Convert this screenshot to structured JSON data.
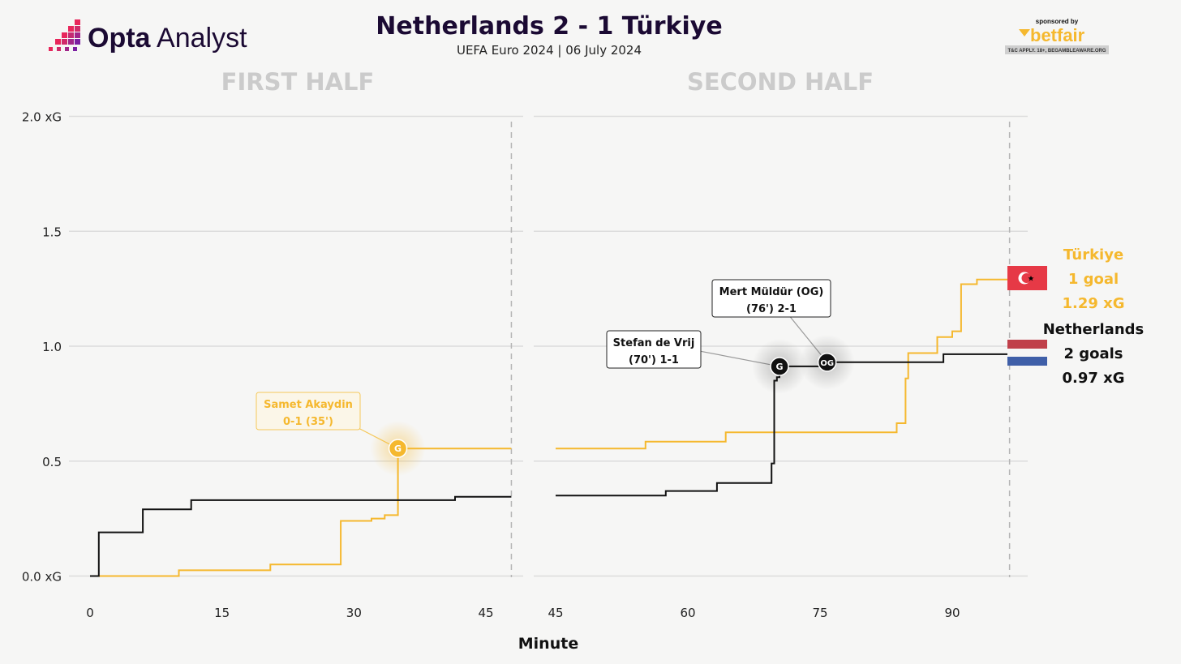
{
  "header": {
    "title": "Netherlands 2 - 1 Türkiye",
    "subtitle": "UEFA Euro 2024 | 06 July 2024",
    "logo_bold": "Opta",
    "logo_light": " Analyst",
    "sponsor_small": "sponsored by",
    "sponsor_name": "betfair",
    "sponsor_disclaimer": "T&C APPLY. 18+, BEGAMBLEAWARE.ORG"
  },
  "colors": {
    "turkiye": "#f5b82e",
    "netherlands": "#111111",
    "panel_title": "#cbcbcb",
    "grid": "#dcdcdc",
    "logo_pink": "#e8265b",
    "logo_purple": "#7b1fa2",
    "logo_text": "#1b0a33"
  },
  "chart_data": {
    "type": "line",
    "step": true,
    "xlabel": "Minute",
    "y_ticks": [
      {
        "v": 0,
        "label": "0.0 xG"
      },
      {
        "v": 0.5,
        "label": "0.5"
      },
      {
        "v": 1.0,
        "label": "1.0"
      },
      {
        "v": 1.5,
        "label": "1.5"
      },
      {
        "v": 2.0,
        "label": "2.0 xG"
      }
    ],
    "ylim": [
      0,
      2
    ],
    "panels": [
      {
        "title": "FIRST HALF",
        "xlim": [
          -1,
          49.5
        ],
        "x_ticks": [
          0,
          15,
          30,
          45
        ],
        "end_minute": 47.9,
        "series": [
          {
            "name": "Netherlands",
            "color": "#111111",
            "points": [
              [
                0,
                0
              ],
              [
                1,
                0
              ],
              [
                1,
                0.19
              ],
              [
                6,
                0.19
              ],
              [
                6,
                0.29
              ],
              [
                11.5,
                0.29
              ],
              [
                11.5,
                0.33
              ],
              [
                41.5,
                0.33
              ],
              [
                41.5,
                0.345
              ],
              [
                47.9,
                0.345
              ]
            ]
          },
          {
            "name": "Türkiye",
            "color": "#f5b82e",
            "points": [
              [
                1,
                0
              ],
              [
                10.1,
                0
              ],
              [
                10.1,
                0.025
              ],
              [
                20.5,
                0.025
              ],
              [
                20.5,
                0.05
              ],
              [
                28.5,
                0.05
              ],
              [
                28.5,
                0.24
              ],
              [
                32,
                0.24
              ],
              [
                32,
                0.25
              ],
              [
                33.5,
                0.25
              ],
              [
                33.5,
                0.265
              ],
              [
                35,
                0.265
              ],
              [
                35,
                0.555
              ],
              [
                47.9,
                0.555
              ]
            ]
          }
        ],
        "goals": [
          {
            "minute": 35,
            "xg": 0.555,
            "team": "Türkiye",
            "marker": "G",
            "lines": [
              "Samet Akaydin",
              "0-1 (35')"
            ]
          }
        ]
      },
      {
        "title": "SECOND HALF",
        "xlim": [
          44.5,
          99.5
        ],
        "x_ticks": [
          45,
          60,
          75,
          90
        ],
        "end_minute": 96.5,
        "series": [
          {
            "name": "Netherlands",
            "color": "#111111",
            "points": [
              [
                45,
                0.35
              ],
              [
                57.5,
                0.35
              ],
              [
                57.5,
                0.37
              ],
              [
                63.3,
                0.37
              ],
              [
                63.3,
                0.405
              ],
              [
                69.5,
                0.405
              ],
              [
                69.5,
                0.49
              ],
              [
                69.8,
                0.49
              ],
              [
                69.8,
                0.85
              ],
              [
                70.1,
                0.85
              ],
              [
                70.1,
                0.865
              ],
              [
                70.4,
                0.865
              ],
              [
                70.4,
                0.912
              ],
              [
                75.8,
                0.912
              ],
              [
                75.8,
                0.93
              ],
              [
                89,
                0.93
              ],
              [
                89,
                0.965
              ],
              [
                96.5,
                0.965
              ]
            ]
          },
          {
            "name": "Türkiye",
            "color": "#f5b82e",
            "points": [
              [
                45,
                0.555
              ],
              [
                55.2,
                0.555
              ],
              [
                55.2,
                0.585
              ],
              [
                64.3,
                0.585
              ],
              [
                64.3,
                0.625
              ],
              [
                83.7,
                0.625
              ],
              [
                83.7,
                0.665
              ],
              [
                84.7,
                0.665
              ],
              [
                84.7,
                0.86
              ],
              [
                85,
                0.86
              ],
              [
                85,
                0.97
              ],
              [
                88.3,
                0.97
              ],
              [
                88.3,
                1.04
              ],
              [
                90,
                1.04
              ],
              [
                90,
                1.065
              ],
              [
                91,
                1.065
              ],
              [
                91,
                1.27
              ],
              [
                92.8,
                1.27
              ],
              [
                92.8,
                1.29
              ],
              [
                96.5,
                1.29
              ]
            ]
          }
        ],
        "goals": [
          {
            "minute": 70.4,
            "xg": 0.912,
            "team": "Netherlands",
            "marker": "G",
            "lines": [
              "Stefan de Vrij",
              "(70') 1-1"
            ]
          },
          {
            "minute": 75.8,
            "xg": 0.93,
            "team": "Netherlands",
            "marker": "OG",
            "lines": [
              "Mert Müldür (OG)",
              "(76') 2-1"
            ]
          }
        ]
      }
    ],
    "legend": [
      {
        "team": "Türkiye",
        "goals": "1 goal",
        "xg": "1.29 xG",
        "color": "#f5b82e",
        "flag": "turkey"
      },
      {
        "team": "Netherlands",
        "goals": "2 goals",
        "xg": "0.97 xG",
        "color": "#111111",
        "flag": "netherlands"
      }
    ]
  }
}
